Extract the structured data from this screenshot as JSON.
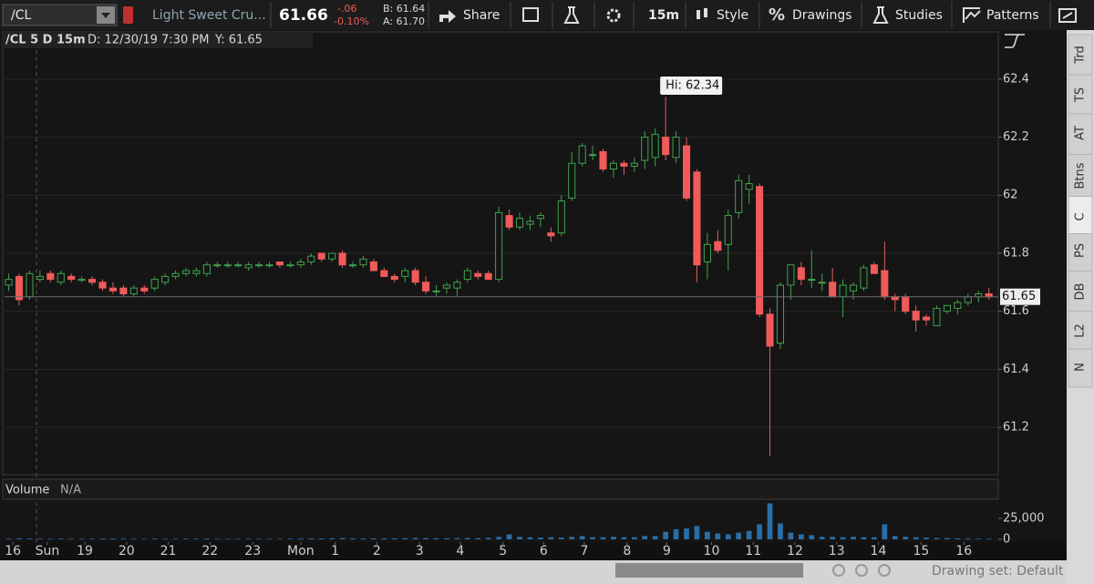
{
  "toolbar": {
    "symbol": "/CL",
    "description": "Light Sweet Cru...",
    "last": "61.66",
    "change": "-.06",
    "change_pct": "-0.10%",
    "bid": "B: 61.64",
    "ask": "A: 61.70",
    "share": "Share",
    "timeframe": "15m",
    "style": "Style",
    "drawings_icon": "%",
    "drawings": "Drawings",
    "studies": "Studies",
    "patterns": "Patterns"
  },
  "chart_info": {
    "symbol": "/CL 5 D 15m",
    "date": "D: 12/30/19 7:30 PM",
    "y": "Y: 61.65"
  },
  "side_tabs": [
    "Trd",
    "TS",
    "AT",
    "Btns",
    "C",
    "PS",
    "DB",
    "L2",
    "N"
  ],
  "footer": {
    "drawing_set": "Drawing set: Default"
  },
  "chart_data": [
    {
      "type": "candlestick",
      "up_color": "#3fa34d",
      "down_color": "#f05a5a",
      "open": [
        61.69,
        61.72,
        61.65,
        61.71,
        61.73,
        61.7,
        61.72,
        61.71,
        61.71,
        61.7,
        61.68,
        61.68,
        61.66,
        61.68,
        61.68,
        61.7,
        61.72,
        61.73,
        61.73,
        61.73,
        61.76,
        61.76,
        61.76,
        61.75,
        61.76,
        61.76,
        61.77,
        61.76,
        61.76,
        61.77,
        61.8,
        61.78,
        61.8,
        61.76,
        61.76,
        61.77,
        61.74,
        61.72,
        61.72,
        61.74,
        61.7,
        61.67,
        61.68,
        61.68,
        61.71,
        61.73,
        61.73,
        61.71,
        61.93,
        61.89,
        61.9,
        61.92,
        61.87,
        61.87,
        61.99,
        62.11,
        62.14,
        62.15,
        62.09,
        62.11,
        62.1,
        62.12,
        62.13,
        62.2,
        62.13,
        62.17,
        62.08,
        61.77,
        61.84,
        61.83,
        61.94,
        62.02,
        62.03,
        61.59,
        61.49,
        61.69,
        61.75,
        61.71,
        61.7,
        61.7,
        61.65,
        61.67,
        61.68,
        61.76,
        61.74,
        61.65,
        61.65,
        61.6,
        61.58,
        61.55,
        61.6,
        61.61,
        61.63,
        61.65,
        61.66
      ],
      "high": [
        61.73,
        61.73,
        61.74,
        61.74,
        61.74,
        61.74,
        61.73,
        61.72,
        61.72,
        61.71,
        61.7,
        61.69,
        61.69,
        61.69,
        61.72,
        61.73,
        61.74,
        61.75,
        61.75,
        61.77,
        61.77,
        61.77,
        61.77,
        61.77,
        61.77,
        61.77,
        61.77,
        61.77,
        61.78,
        61.8,
        61.8,
        61.8,
        61.81,
        61.77,
        61.79,
        61.78,
        61.75,
        61.73,
        61.75,
        61.75,
        61.72,
        61.69,
        61.7,
        61.71,
        61.75,
        61.74,
        61.74,
        61.96,
        61.95,
        61.94,
        61.93,
        61.94,
        61.89,
        62.0,
        62.15,
        62.18,
        62.17,
        62.16,
        62.12,
        62.12,
        62.13,
        62.22,
        62.23,
        62.34,
        62.22,
        62.2,
        62.09,
        61.87,
        61.88,
        61.95,
        62.07,
        62.07,
        62.04,
        61.61,
        61.7,
        61.76,
        61.77,
        61.81,
        61.73,
        61.75,
        61.71,
        61.7,
        61.76,
        61.77,
        61.84,
        61.66,
        61.66,
        61.62,
        61.59,
        61.62,
        61.62,
        61.64,
        61.66,
        61.67,
        61.68
      ],
      "low": [
        61.67,
        61.62,
        61.64,
        61.7,
        61.7,
        61.69,
        61.7,
        61.7,
        61.69,
        61.67,
        61.66,
        61.65,
        61.65,
        61.66,
        61.67,
        61.69,
        61.71,
        61.72,
        61.72,
        61.72,
        61.75,
        61.75,
        61.75,
        61.74,
        61.75,
        61.75,
        61.75,
        61.75,
        61.75,
        61.76,
        61.77,
        61.77,
        61.75,
        61.75,
        61.75,
        61.74,
        61.72,
        61.7,
        61.7,
        61.69,
        61.66,
        61.65,
        61.66,
        61.65,
        61.7,
        61.71,
        61.71,
        61.7,
        61.88,
        61.88,
        61.88,
        61.89,
        61.84,
        61.86,
        61.98,
        62.1,
        62.12,
        62.08,
        62.06,
        62.07,
        62.08,
        62.09,
        62.1,
        62.12,
        62.11,
        61.98,
        61.7,
        61.71,
        61.8,
        61.74,
        61.92,
        61.97,
        61.58,
        61.1,
        61.47,
        61.64,
        61.69,
        61.68,
        61.67,
        61.65,
        61.58,
        61.64,
        61.67,
        61.73,
        61.64,
        61.6,
        61.59,
        61.53,
        61.55,
        61.55,
        61.59,
        61.59,
        61.62,
        61.63,
        61.64
      ],
      "close": [
        61.71,
        61.64,
        61.73,
        61.72,
        61.71,
        61.73,
        61.71,
        61.71,
        61.7,
        61.68,
        61.67,
        61.66,
        61.68,
        61.67,
        61.71,
        61.72,
        61.73,
        61.74,
        61.74,
        61.76,
        61.76,
        61.76,
        61.76,
        61.76,
        61.76,
        61.76,
        61.76,
        61.76,
        61.77,
        61.79,
        61.78,
        61.8,
        61.76,
        61.76,
        61.78,
        61.74,
        61.72,
        61.71,
        61.74,
        61.7,
        61.67,
        61.67,
        61.69,
        61.7,
        61.74,
        61.72,
        61.71,
        61.94,
        61.89,
        61.92,
        61.91,
        61.93,
        61.86,
        61.98,
        62.11,
        62.17,
        62.14,
        62.09,
        62.11,
        62.1,
        62.11,
        62.2,
        62.21,
        62.14,
        62.2,
        61.99,
        61.76,
        61.83,
        61.81,
        61.93,
        62.05,
        62.04,
        61.59,
        61.48,
        61.69,
        61.76,
        61.71,
        61.71,
        61.7,
        61.65,
        61.69,
        61.69,
        61.75,
        61.73,
        61.65,
        61.64,
        61.6,
        61.57,
        61.57,
        61.61,
        61.62,
        61.63,
        61.65,
        61.66,
        61.65
      ],
      "xlim": [
        -0.4,
        94.9
      ],
      "ylim": [
        61.04,
        62.5
      ],
      "yticks": [
        61.2,
        61.4,
        61.6,
        61.8,
        62,
        62.2,
        62.4
      ],
      "grid": true,
      "last_price": 61.65,
      "annotation": "Hi: 62.34"
    },
    {
      "type": "bar",
      "title": "Volume",
      "subtitle": "N/A",
      "color": "#2a6ea6",
      "values": [
        900,
        1200,
        1000,
        800,
        700,
        900,
        800,
        700,
        800,
        1000,
        1100,
        900,
        800,
        700,
        900,
        800,
        700,
        900,
        800,
        1000,
        700,
        600,
        700,
        800,
        600,
        700,
        800,
        900,
        1000,
        1200,
        1100,
        1300,
        1500,
        1200,
        1000,
        1100,
        1300,
        1200,
        1400,
        1600,
        1500,
        1300,
        1200,
        1400,
        1600,
        1500,
        1800,
        3000,
        6000,
        3000,
        2500,
        2000,
        2500,
        2000,
        3000,
        4000,
        2500,
        2500,
        3000,
        2500,
        2500,
        4000,
        4000,
        9000,
        12000,
        13000,
        16000,
        9000,
        7000,
        6000,
        8000,
        10000,
        18000,
        43000,
        19000,
        8000,
        6000,
        5000,
        3000,
        3000,
        2500,
        3000,
        2500,
        2500,
        18000,
        4000,
        3000,
        2500,
        2000,
        1500,
        1500,
        1200,
        1000,
        900,
        700
      ],
      "xlim": [
        -0.4,
        94.9
      ],
      "ylim": [
        0,
        43500
      ],
      "yticks": [
        0,
        {
          "value": 25000,
          "label": "25,000"
        }
      ],
      "xticks": [
        {
          "value": 0.4,
          "label": "16"
        },
        {
          "value": 3.7,
          "label": "Sun"
        },
        {
          "value": 7.3,
          "label": "19"
        },
        {
          "value": 11.3,
          "label": "20"
        },
        {
          "value": 15.3,
          "label": "21"
        },
        {
          "value": 19.3,
          "label": "22"
        },
        {
          "value": 23.4,
          "label": "23"
        },
        {
          "value": 28,
          "label": "Mon"
        },
        {
          "value": 31.3,
          "label": "1"
        },
        {
          "value": 35.3,
          "label": "2"
        },
        {
          "value": 39.4,
          "label": "3"
        },
        {
          "value": 43.3,
          "label": "4"
        },
        {
          "value": 47.4,
          "label": "5"
        },
        {
          "value": 51.3,
          "label": "6"
        },
        {
          "value": 55.2,
          "label": "7"
        },
        {
          "value": 59.3,
          "label": "8"
        },
        {
          "value": 63.1,
          "label": "9"
        },
        {
          "value": 67.4,
          "label": "10"
        },
        {
          "value": 71.4,
          "label": "11"
        },
        {
          "value": 75.4,
          "label": "12"
        },
        {
          "value": 79.4,
          "label": "13"
        },
        {
          "value": 83.4,
          "label": "14"
        },
        {
          "value": 87.5,
          "label": "15"
        },
        {
          "value": 91.6,
          "label": "16"
        }
      ]
    }
  ]
}
